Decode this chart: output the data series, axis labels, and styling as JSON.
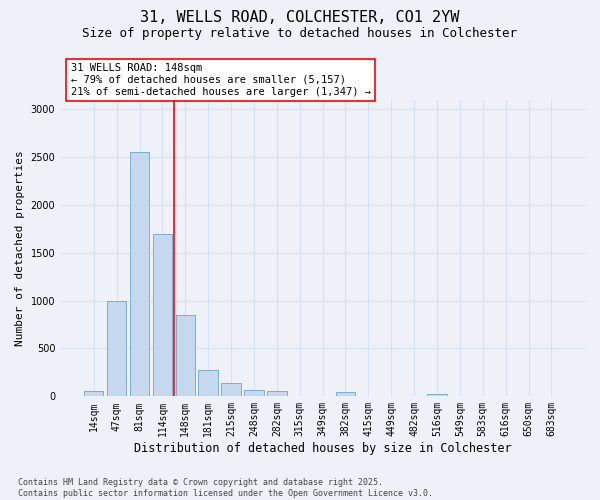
{
  "title1": "31, WELLS ROAD, COLCHESTER, CO1 2YW",
  "title2": "Size of property relative to detached houses in Colchester",
  "xlabel": "Distribution of detached houses by size in Colchester",
  "ylabel": "Number of detached properties",
  "categories": [
    "14sqm",
    "47sqm",
    "81sqm",
    "114sqm",
    "148sqm",
    "181sqm",
    "215sqm",
    "248sqm",
    "282sqm",
    "315sqm",
    "349sqm",
    "382sqm",
    "415sqm",
    "449sqm",
    "482sqm",
    "516sqm",
    "549sqm",
    "583sqm",
    "616sqm",
    "650sqm",
    "683sqm"
  ],
  "values": [
    55,
    1000,
    2550,
    1700,
    850,
    270,
    140,
    65,
    60,
    0,
    0,
    45,
    0,
    0,
    0,
    20,
    0,
    0,
    0,
    0,
    0
  ],
  "bar_color": "#c5d8ee",
  "bar_edge_color": "#7aafd4",
  "vline_index": 3.5,
  "vline_color": "red",
  "annotation_text": "31 WELLS ROAD: 148sqm\n← 79% of detached houses are smaller (5,157)\n21% of semi-detached houses are larger (1,347) →",
  "annotation_box_color": "white",
  "annotation_box_edge_color": "red",
  "ylim": [
    0,
    3100
  ],
  "yticks": [
    0,
    500,
    1000,
    1500,
    2000,
    2500,
    3000
  ],
  "bg_color": "#eef2f8",
  "grid_color": "#d8e2ef",
  "footnote": "Contains HM Land Registry data © Crown copyright and database right 2025.\nContains public sector information licensed under the Open Government Licence v3.0.",
  "title1_fontsize": 11,
  "title2_fontsize": 9,
  "xlabel_fontsize": 8.5,
  "ylabel_fontsize": 8,
  "tick_fontsize": 7,
  "annotation_fontsize": 7.5,
  "footnote_fontsize": 6
}
